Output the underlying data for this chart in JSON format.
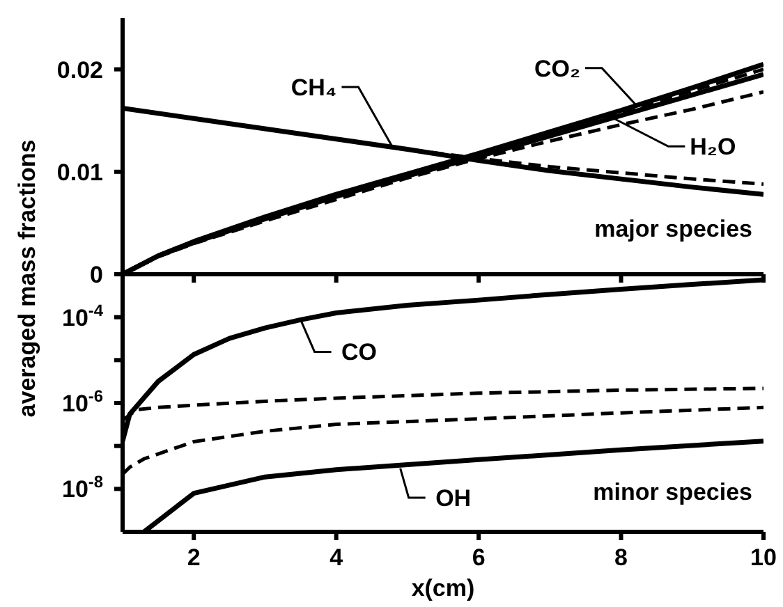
{
  "chart_data": [
    {
      "type": "line",
      "ylabel": "averaged mass fractions",
      "xlim": [
        1,
        10
      ],
      "xticks": [
        2,
        4,
        6,
        8,
        10
      ],
      "ylim": [
        0,
        0.025
      ],
      "yticks": [
        0,
        0.01,
        0.02
      ],
      "tick_labels": "y",
      "marker": "none",
      "grid": false,
      "legend": false,
      "series": [
        {
          "color": "#000000",
          "line_style": "solid",
          "x": [
            1,
            2,
            3,
            4,
            5,
            6,
            7,
            8,
            9,
            10
          ],
          "values": [
            0.0162,
            0.0152,
            0.0142,
            0.0132,
            0.0122,
            0.0111,
            0.0101,
            0.0093,
            0.0085,
            0.0078
          ]
        },
        {
          "color": "#000000",
          "line_style": "dashed",
          "x": [
            1,
            2,
            3,
            4,
            5,
            6,
            7,
            8,
            9,
            10
          ],
          "values": [
            0.0162,
            0.0152,
            0.0142,
            0.0132,
            0.0122,
            0.0113,
            0.0105,
            0.0099,
            0.0093,
            0.0088
          ]
        },
        {
          "color": "#000000",
          "line_style": "solid",
          "x": [
            1,
            1.5,
            2,
            3,
            4,
            5,
            6,
            7,
            8,
            9,
            10
          ],
          "values": [
            0,
            0.0018,
            0.0032,
            0.0056,
            0.0078,
            0.0098,
            0.0118,
            0.0139,
            0.016,
            0.0182,
            0.0205
          ]
        },
        {
          "color": "#000000",
          "line_style": "dashed",
          "x": [
            1,
            1.5,
            2,
            3,
            4,
            5,
            6,
            7,
            8,
            9,
            10
          ],
          "values": [
            0,
            0.0018,
            0.0032,
            0.0055,
            0.0077,
            0.0097,
            0.0117,
            0.0137,
            0.0158,
            0.0179,
            0.02
          ]
        },
        {
          "color": "#000000",
          "line_style": "solid",
          "x": [
            1,
            1.5,
            2,
            3,
            4,
            5,
            6,
            7,
            8,
            9,
            10
          ],
          "values": [
            0,
            0.0018,
            0.0031,
            0.0054,
            0.0076,
            0.0096,
            0.0115,
            0.0135,
            0.0155,
            0.0175,
            0.0195
          ]
        },
        {
          "color": "#000000",
          "line_style": "dashed",
          "x": [
            1,
            1.5,
            2,
            3,
            4,
            5,
            6,
            7,
            8,
            9,
            10
          ],
          "values": [
            0,
            0.0017,
            0.003,
            0.0052,
            0.0073,
            0.0094,
            0.0113,
            0.013,
            0.0146,
            0.0161,
            0.0178
          ]
        }
      ],
      "annotations": [
        {
          "text": "CH₄",
          "x": 4.8,
          "y": 0.0123
        },
        {
          "text": "CO₂",
          "x": 8.2,
          "y": 0.0166
        },
        {
          "text": "H₂O",
          "x": 7.9,
          "y": 0.0152
        },
        "major species"
      ]
    },
    {
      "type": "line",
      "xlabel": "x(cm)",
      "xlim": [
        1,
        10
      ],
      "xticks": [
        2,
        4,
        6,
        8,
        10
      ],
      "ylim": [
        1e-09,
        0.001
      ],
      "log": "y",
      "yticks": [
        {
          "value": 0.0001,
          "label": "10$^{-4}$"
        },
        {
          "value": 1e-05,
          "label": null
        },
        {
          "value": 1e-06,
          "label": "10$^{-6}$"
        },
        {
          "value": 1e-07,
          "label": null
        },
        {
          "value": 1e-08,
          "label": "10$^{-8}$"
        }
      ],
      "marker": "none",
      "grid": false,
      "legend": false,
      "series": [
        {
          "color": "#000000",
          "line_style": "solid",
          "x": [
            1,
            1.1,
            1.5,
            2,
            2.5,
            3,
            3.5,
            4,
            5,
            6,
            7,
            8,
            9,
            10
          ],
          "values": [
            1.3e-07,
            5.5e-07,
            3.2e-06,
            1.35e-05,
            3.2e-05,
            5.6e-05,
            8.7e-05,
            0.000126,
            0.00019,
            0.00025,
            0.00034,
            0.00045,
            0.00058,
            0.00074
          ]
        },
        {
          "color": "#000000",
          "line_style": "dashed",
          "x": [
            1,
            1.2,
            1.5,
            2,
            3,
            4,
            6,
            8,
            10
          ],
          "values": [
            4e-07,
            7e-07,
            7.9e-07,
            8.9e-07,
            1.1e-06,
            1.3e-06,
            1.7e-06,
            2e-06,
            2.2e-06
          ]
        },
        {
          "color": "#000000",
          "line_style": "dashed",
          "x": [
            1,
            1.1,
            1.3,
            2,
            3,
            4,
            6,
            8,
            10
          ],
          "values": [
            2.2e-08,
            3.2e-08,
            5e-08,
            1.26e-07,
            2.2e-07,
            3.2e-07,
            4.3e-07,
            5.9e-07,
            7.9e-07
          ]
        },
        {
          "color": "#000000",
          "line_style": "solid",
          "x": [
            1.3,
            1.5,
            2,
            3,
            4,
            6,
            8,
            10
          ],
          "values": [
            1e-09,
            1.8e-09,
            7.9e-09,
            1.9e-08,
            2.8e-08,
            4.8e-08,
            8.1e-08,
            1.3e-07
          ]
        }
      ],
      "annotations": [
        {
          "text": "CO",
          "x": 3.5,
          "y": 8.7e-05
        },
        {
          "text": "OH",
          "x": 4.9,
          "y": 3e-08
        },
        "minor species"
      ]
    }
  ]
}
